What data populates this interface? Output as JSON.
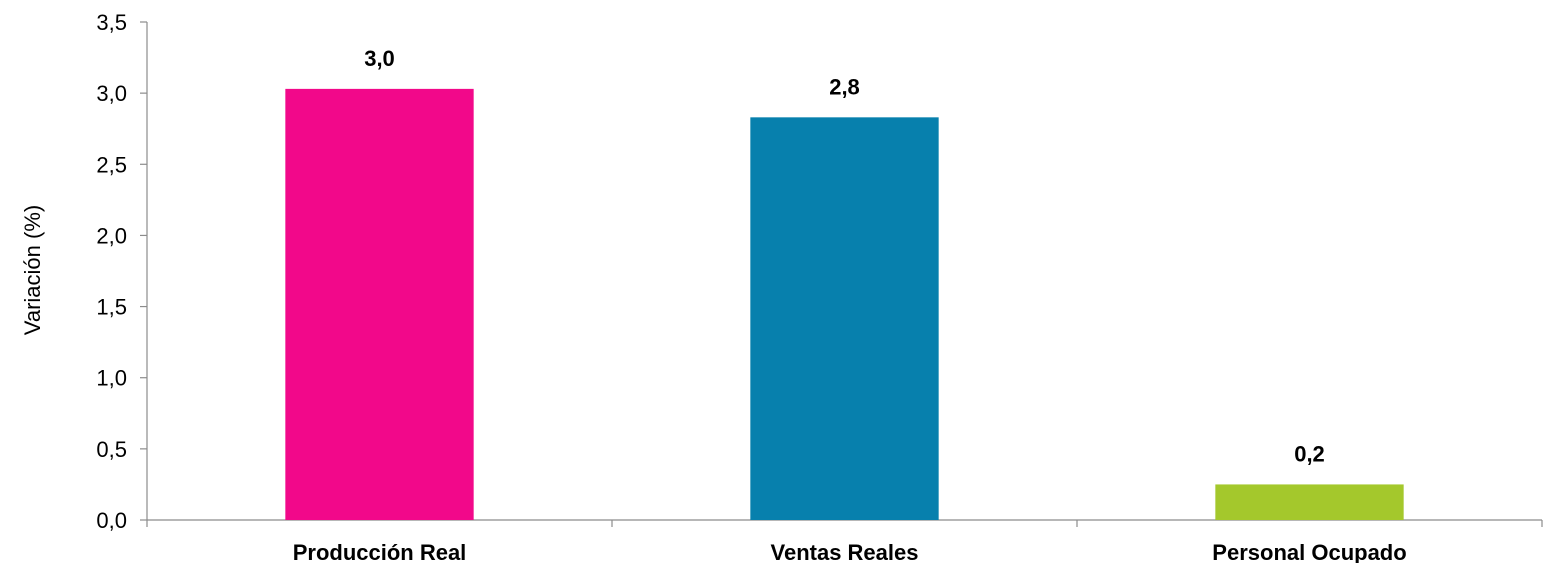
{
  "chart_data": {
    "type": "bar",
    "categories": [
      "Producción Real",
      "Ventas Reales",
      "Personal Ocupado"
    ],
    "values": [
      3.03,
      2.83,
      0.25
    ],
    "data_labels": [
      "3,0",
      "2,8",
      "0,2"
    ],
    "colors": [
      "#f2088a",
      "#0780ad",
      "#a4c82c"
    ],
    "title": "",
    "xlabel": "",
    "ylabel": "Variación (%)",
    "ylim": [
      0,
      3.5
    ],
    "yticks": [
      0,
      0.5,
      1.0,
      1.5,
      2.0,
      2.5,
      3.0,
      3.5
    ],
    "ytick_labels": [
      "0,0",
      "0,5",
      "1,0",
      "1,5",
      "2,0",
      "2,5",
      "3,0",
      "3,5"
    ],
    "grid": false,
    "legend": "none"
  }
}
